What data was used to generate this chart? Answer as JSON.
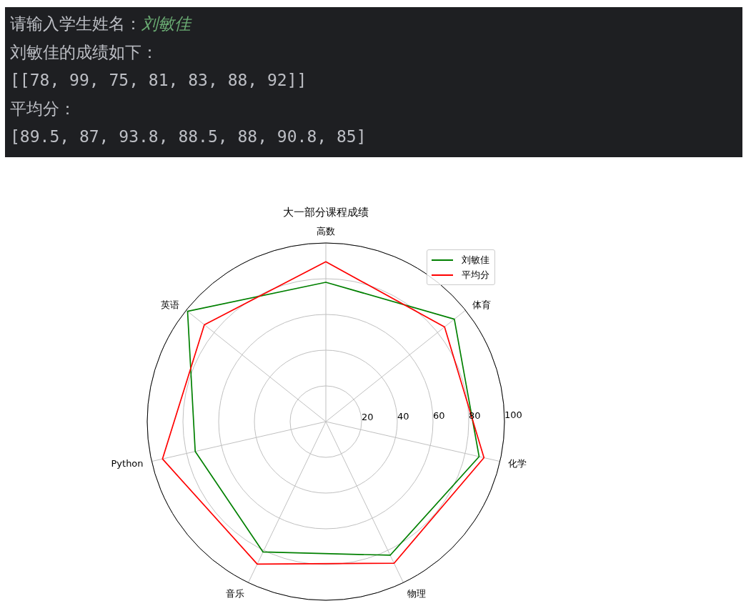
{
  "chart_data": {
    "type": "radar",
    "title": "大一部分课程成绩",
    "categories": [
      "高数",
      "体育",
      "化学",
      "物理",
      "音乐",
      "Python",
      "英语"
    ],
    "series": [
      {
        "name": "刘敏佳",
        "color": "#008000",
        "values": [
          78,
          92,
          88,
          83,
          81,
          75,
          99
        ]
      },
      {
        "name": "平均分",
        "color": "#ff0000",
        "values": [
          89.5,
          85,
          90.8,
          88,
          88.5,
          93.8,
          87
        ]
      }
    ],
    "ylim": [
      0,
      100
    ],
    "yticks": [
      20,
      40,
      60,
      80,
      100
    ],
    "grid": true,
    "legend": "top right",
    "annotations": [
      "请输入学生姓名：",
      "刘敏佳",
      "刘敏佳的成绩如下：",
      "[[78, 99, 75, 81, 83, 88, 92]]",
      "平均分：",
      "[89.5, 87, 93.8, 88.5, 88, 90.8, 85]"
    ]
  }
}
